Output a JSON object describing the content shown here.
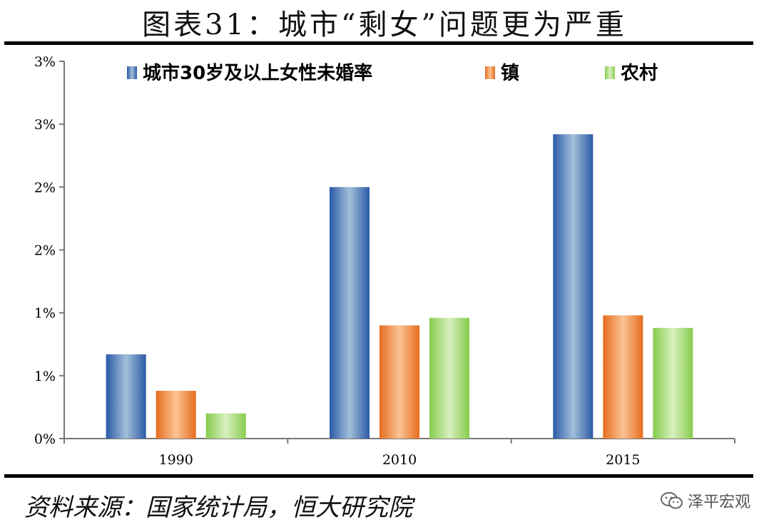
{
  "title": "图表31：城市“剩女”问题更为严重",
  "source": "资料来源：国家统计局，恒大研究院",
  "watermark": "泽平宏观",
  "colors": {
    "series1": "#3b6fb6",
    "series2": "#f08a3c",
    "series3": "#9cd668"
  },
  "chart_data": {
    "type": "bar",
    "categories": [
      "1990",
      "2010",
      "2015"
    ],
    "series": [
      {
        "name": "城市30岁及以上女性未婚率",
        "values": [
          0.67,
          2.0,
          2.42
        ]
      },
      {
        "name": "镇",
        "values": [
          0.38,
          0.9,
          0.98
        ]
      },
      {
        "name": "农村",
        "values": [
          0.2,
          0.96,
          0.88
        ]
      }
    ],
    "ylim": [
      0,
      3
    ],
    "yticks": [
      0,
      0.5,
      1,
      1.5,
      2,
      2.5,
      3
    ],
    "ytick_labels": [
      "0%",
      "1%",
      "1%",
      "2%",
      "2%",
      "3%",
      "3%"
    ],
    "legend_position": "top",
    "grid": false
  }
}
